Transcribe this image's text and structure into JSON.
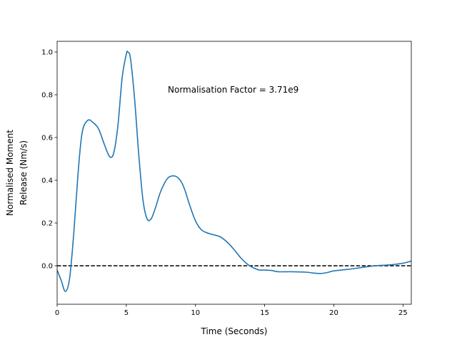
{
  "chart_data": {
    "type": "line",
    "title": "",
    "xlabel": "Time (Seconds)",
    "ylabel_lines": [
      "Normalised Moment",
      "Release (Nm/s)"
    ],
    "xlim": [
      0,
      25.6
    ],
    "ylim": [
      -0.18,
      1.05
    ],
    "xticks": [
      0,
      5,
      10,
      15,
      20,
      25
    ],
    "xtick_labels": [
      "0",
      "5",
      "10",
      "15",
      "20",
      "25"
    ],
    "yticks": [
      0.0,
      0.2,
      0.4,
      0.6,
      0.8,
      1.0
    ],
    "ytick_labels": [
      "0.0",
      "0.2",
      "0.4",
      "0.6",
      "0.8",
      "1.0"
    ],
    "grid": false,
    "line_color": "#1f77b4",
    "reference_line": {
      "y": 0,
      "style": "dashed",
      "color": "#000000"
    },
    "annotation": {
      "text": "Normalisation Factor = 3.71e9",
      "x": 8.0,
      "y": 0.81
    },
    "series": [
      {
        "x": [
          0,
          0.3,
          0.6,
          0.9,
          1.2,
          1.5,
          1.8,
          2.2,
          2.6,
          3.0,
          3.4,
          3.8,
          4.1,
          4.4,
          4.7,
          5.0,
          5.1,
          5.3,
          5.6,
          5.9,
          6.2,
          6.5,
          6.8,
          7.1,
          7.5,
          8.0,
          8.5,
          8.9,
          9.2,
          9.6,
          10.0,
          10.4,
          10.8,
          11.3,
          11.8,
          12.3,
          12.8,
          13.3,
          13.8,
          14.2,
          14.6,
          15.0,
          15.5,
          16.0,
          17.0,
          18.0,
          18.5,
          19.0,
          19.5,
          20.0,
          21.0,
          22.0,
          23.0,
          24.0,
          25.0,
          25.6
        ],
        "y": [
          -0.02,
          -0.07,
          -0.12,
          -0.06,
          0.15,
          0.42,
          0.62,
          0.68,
          0.67,
          0.64,
          0.57,
          0.51,
          0.53,
          0.66,
          0.88,
          0.99,
          1.0,
          0.97,
          0.78,
          0.52,
          0.31,
          0.22,
          0.22,
          0.27,
          0.35,
          0.41,
          0.42,
          0.4,
          0.36,
          0.28,
          0.21,
          0.17,
          0.155,
          0.145,
          0.135,
          0.11,
          0.075,
          0.035,
          0.005,
          -0.01,
          -0.02,
          -0.02,
          -0.022,
          -0.028,
          -0.028,
          -0.03,
          -0.034,
          -0.036,
          -0.032,
          -0.024,
          -0.017,
          -0.008,
          0.0,
          0.004,
          0.012,
          0.022
        ]
      }
    ]
  }
}
